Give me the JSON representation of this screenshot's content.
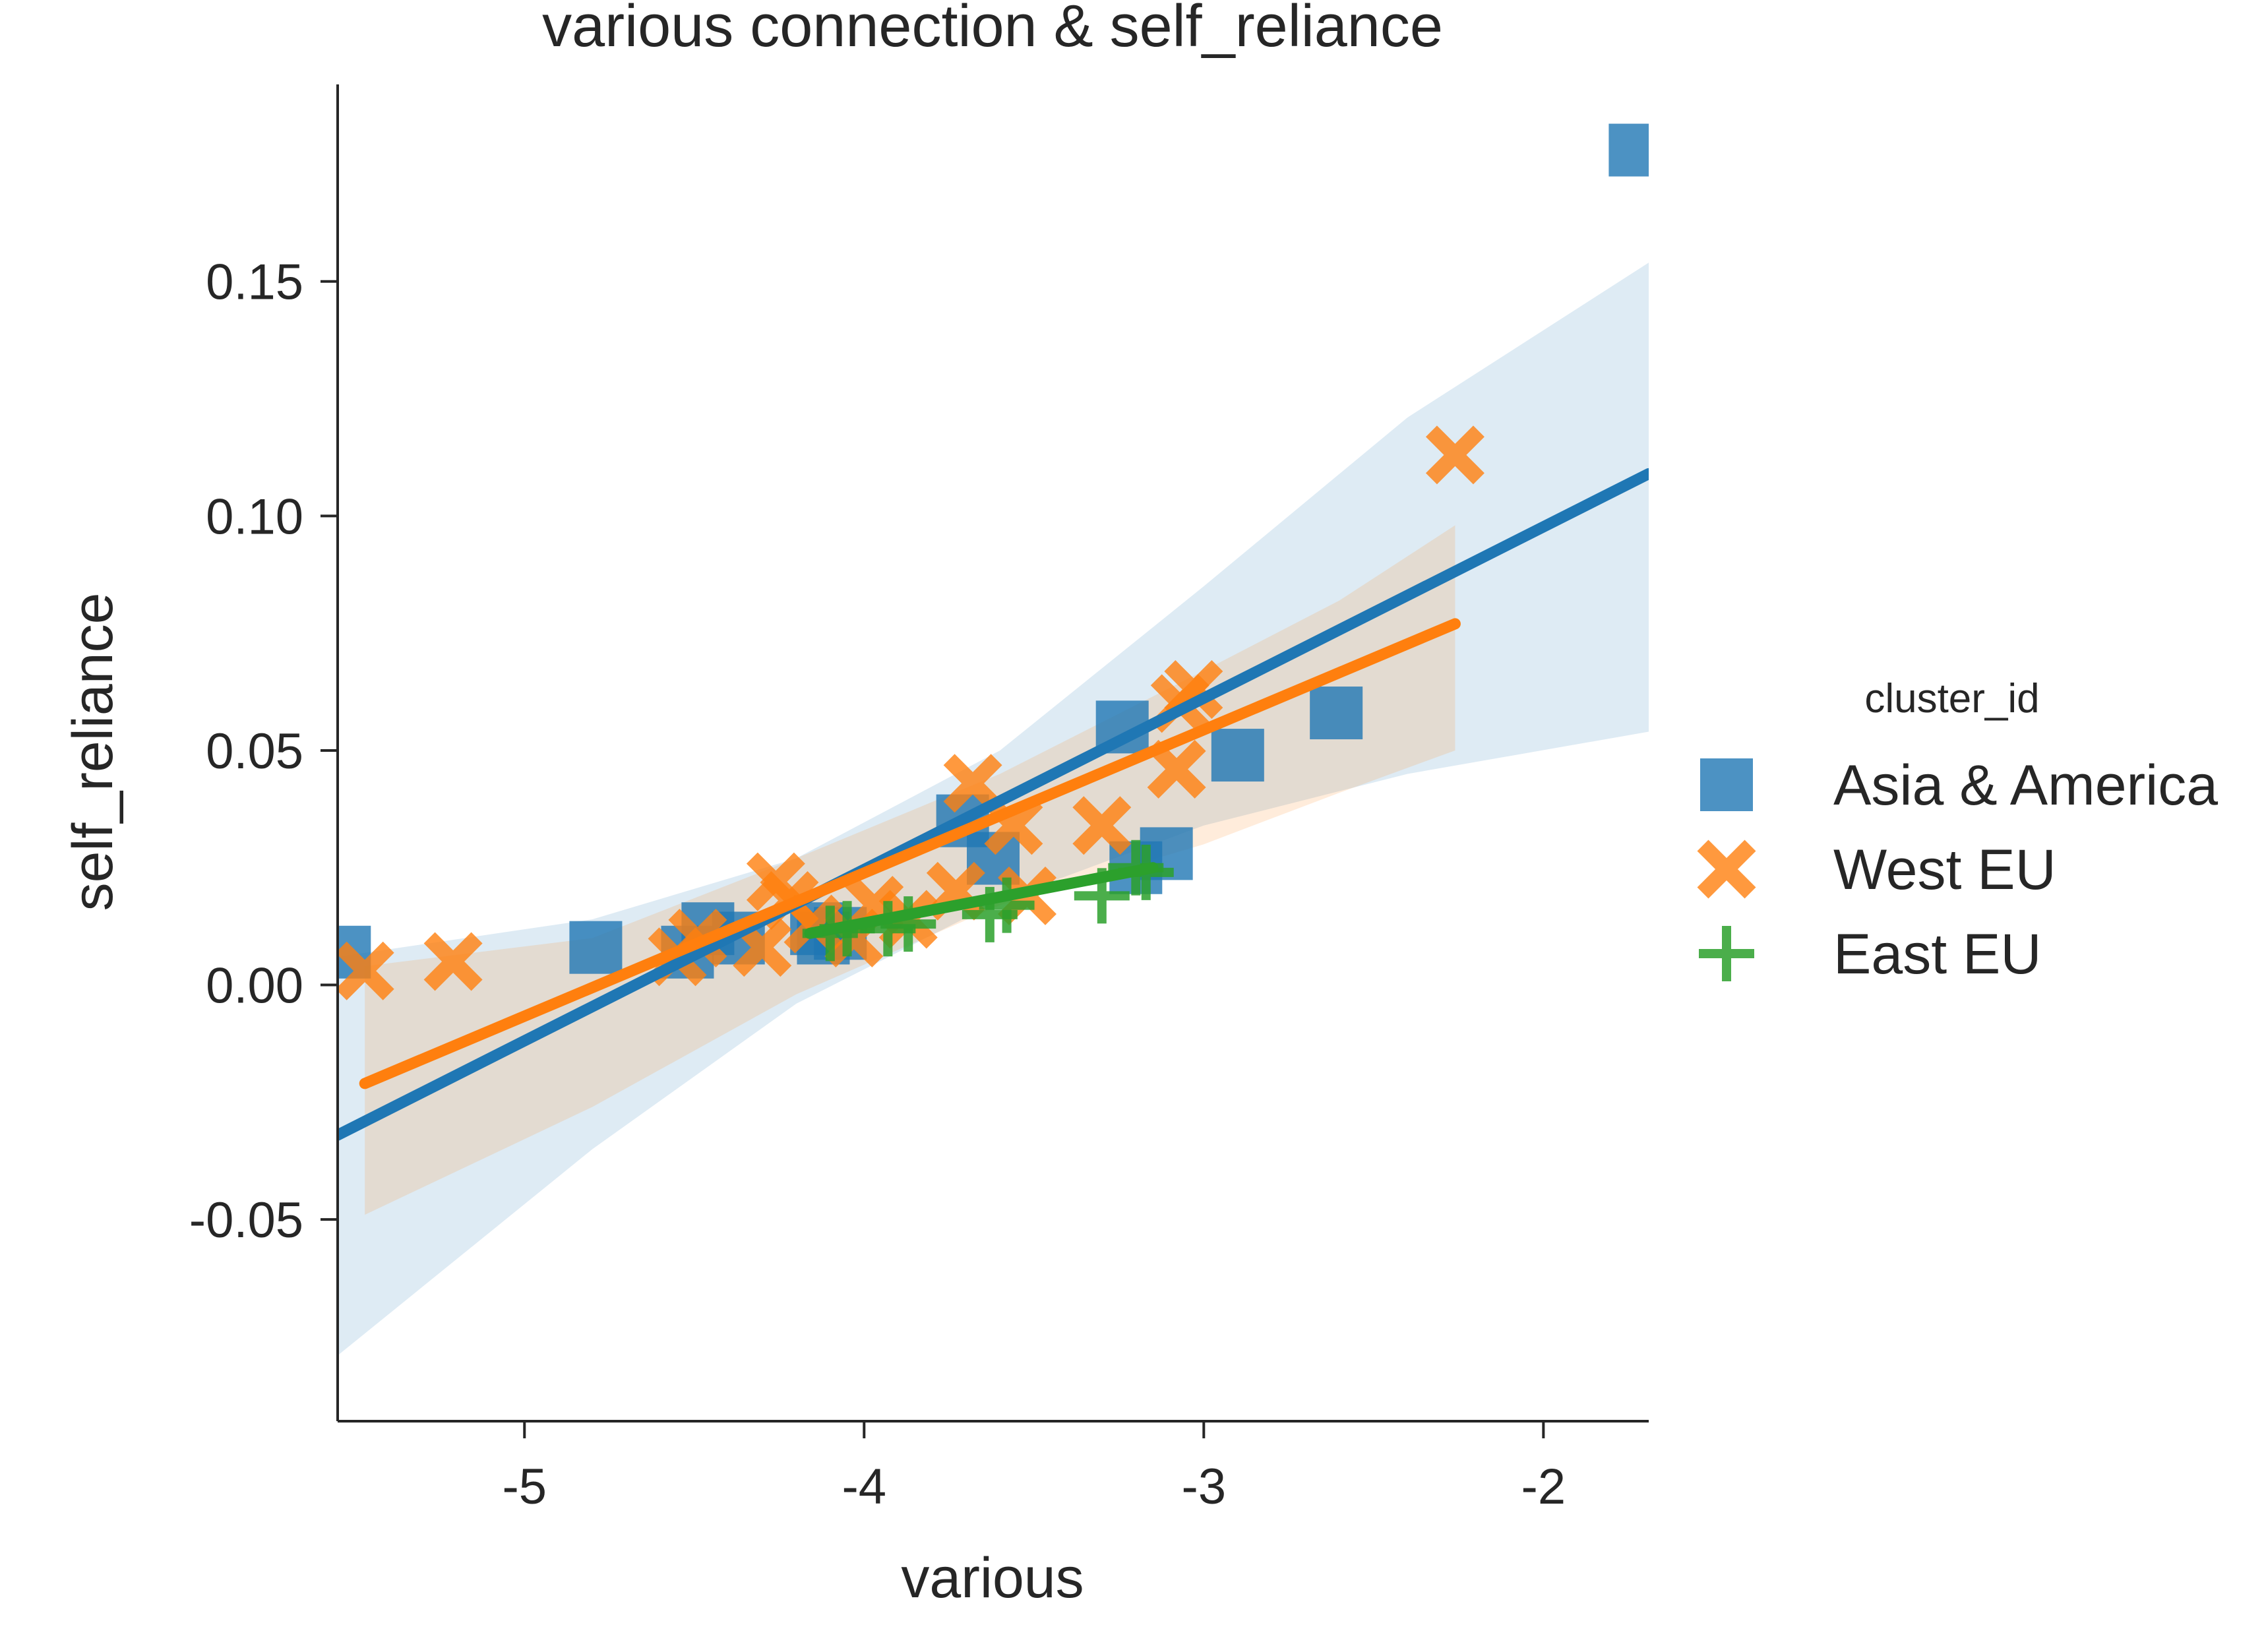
{
  "chart_data": {
    "type": "scatter",
    "title": "various connection & self_reliance",
    "xlabel": "various",
    "ylabel": "self_reliance",
    "xlim": [
      -5.55,
      -1.69
    ],
    "ylim": [
      -0.093,
      0.192
    ],
    "xticks": [
      -5,
      -4,
      -3,
      -2
    ],
    "xtick_labels": [
      "-5",
      "-4",
      "-3",
      "-2"
    ],
    "yticks": [
      -0.05,
      0.0,
      0.05,
      0.1,
      0.15
    ],
    "ytick_labels": [
      "-0.05",
      "0.00",
      "0.05",
      "0.10",
      "0.15"
    ],
    "grid": false,
    "legend": {
      "title": "cluster_id",
      "placement": "right"
    },
    "series": [
      {
        "name": "Asia & America",
        "marker": "square",
        "color": "#1f77b4",
        "points": [
          [
            -5.53,
            0.007
          ],
          [
            -4.79,
            0.008
          ],
          [
            -4.52,
            0.007
          ],
          [
            -4.46,
            0.012
          ],
          [
            -4.37,
            0.01
          ],
          [
            -4.14,
            0.012
          ],
          [
            -4.12,
            0.01
          ],
          [
            -4.07,
            0.011
          ],
          [
            -3.71,
            0.035
          ],
          [
            -3.62,
            0.027
          ],
          [
            -3.24,
            0.055
          ],
          [
            -3.2,
            0.025
          ],
          [
            -3.11,
            0.028
          ],
          [
            -2.9,
            0.049
          ],
          [
            -2.61,
            0.058
          ],
          [
            -1.73,
            0.178
          ]
        ],
        "fit": {
          "x": [
            -5.55,
            -1.69
          ],
          "y": [
            -0.032,
            0.109
          ]
        },
        "ci": {
          "x": [
            -5.55,
            -4.8,
            -4.2,
            -3.6,
            -3.0,
            -2.4,
            -1.69
          ],
          "lo": [
            -0.079,
            -0.035,
            -0.004,
            0.018,
            0.034,
            0.045,
            0.054
          ],
          "hi": [
            0.006,
            0.014,
            0.027,
            0.05,
            0.085,
            0.121,
            0.154
          ]
        }
      },
      {
        "name": "West EU",
        "marker": "x",
        "color": "#ff7f0e",
        "points": [
          [
            -5.47,
            0.003
          ],
          [
            -5.21,
            0.005
          ],
          [
            -4.55,
            0.006
          ],
          [
            -4.49,
            0.01
          ],
          [
            -4.3,
            0.008
          ],
          [
            -4.26,
            0.022
          ],
          [
            -4.22,
            0.018
          ],
          [
            -4.15,
            0.013
          ],
          [
            -4.03,
            0.01
          ],
          [
            -3.97,
            0.017
          ],
          [
            -3.87,
            0.014
          ],
          [
            -3.73,
            0.02
          ],
          [
            -3.68,
            0.043
          ],
          [
            -3.56,
            0.034
          ],
          [
            -3.52,
            0.019
          ],
          [
            -3.3,
            0.034
          ],
          [
            -3.08,
            0.046
          ],
          [
            -3.07,
            0.06
          ],
          [
            -3.03,
            0.063
          ],
          [
            -2.26,
            0.113
          ]
        ],
        "fit": {
          "x": [
            -5.47,
            -2.26
          ],
          "y": [
            -0.021,
            0.077
          ]
        },
        "ci": {
          "x": [
            -5.47,
            -4.8,
            -4.2,
            -3.6,
            -3.0,
            -2.6,
            -2.26
          ],
          "lo": [
            -0.049,
            -0.026,
            -0.002,
            0.017,
            0.03,
            0.041,
            0.05
          ],
          "hi": [
            0.004,
            0.01,
            0.027,
            0.045,
            0.067,
            0.082,
            0.098
          ]
        }
      },
      {
        "name": "East EU",
        "marker": "plus",
        "color": "#2ca02c",
        "points": [
          [
            -4.1,
            0.011
          ],
          [
            -4.05,
            0.012
          ],
          [
            -3.93,
            0.012
          ],
          [
            -3.87,
            0.013
          ],
          [
            -3.63,
            0.015
          ],
          [
            -3.58,
            0.017
          ],
          [
            -3.3,
            0.019
          ],
          [
            -3.2,
            0.025
          ],
          [
            -3.17,
            0.024
          ]
        ],
        "fit": {
          "x": [
            -4.16,
            -3.15
          ],
          "y": [
            0.011,
            0.025
          ]
        }
      }
    ]
  }
}
